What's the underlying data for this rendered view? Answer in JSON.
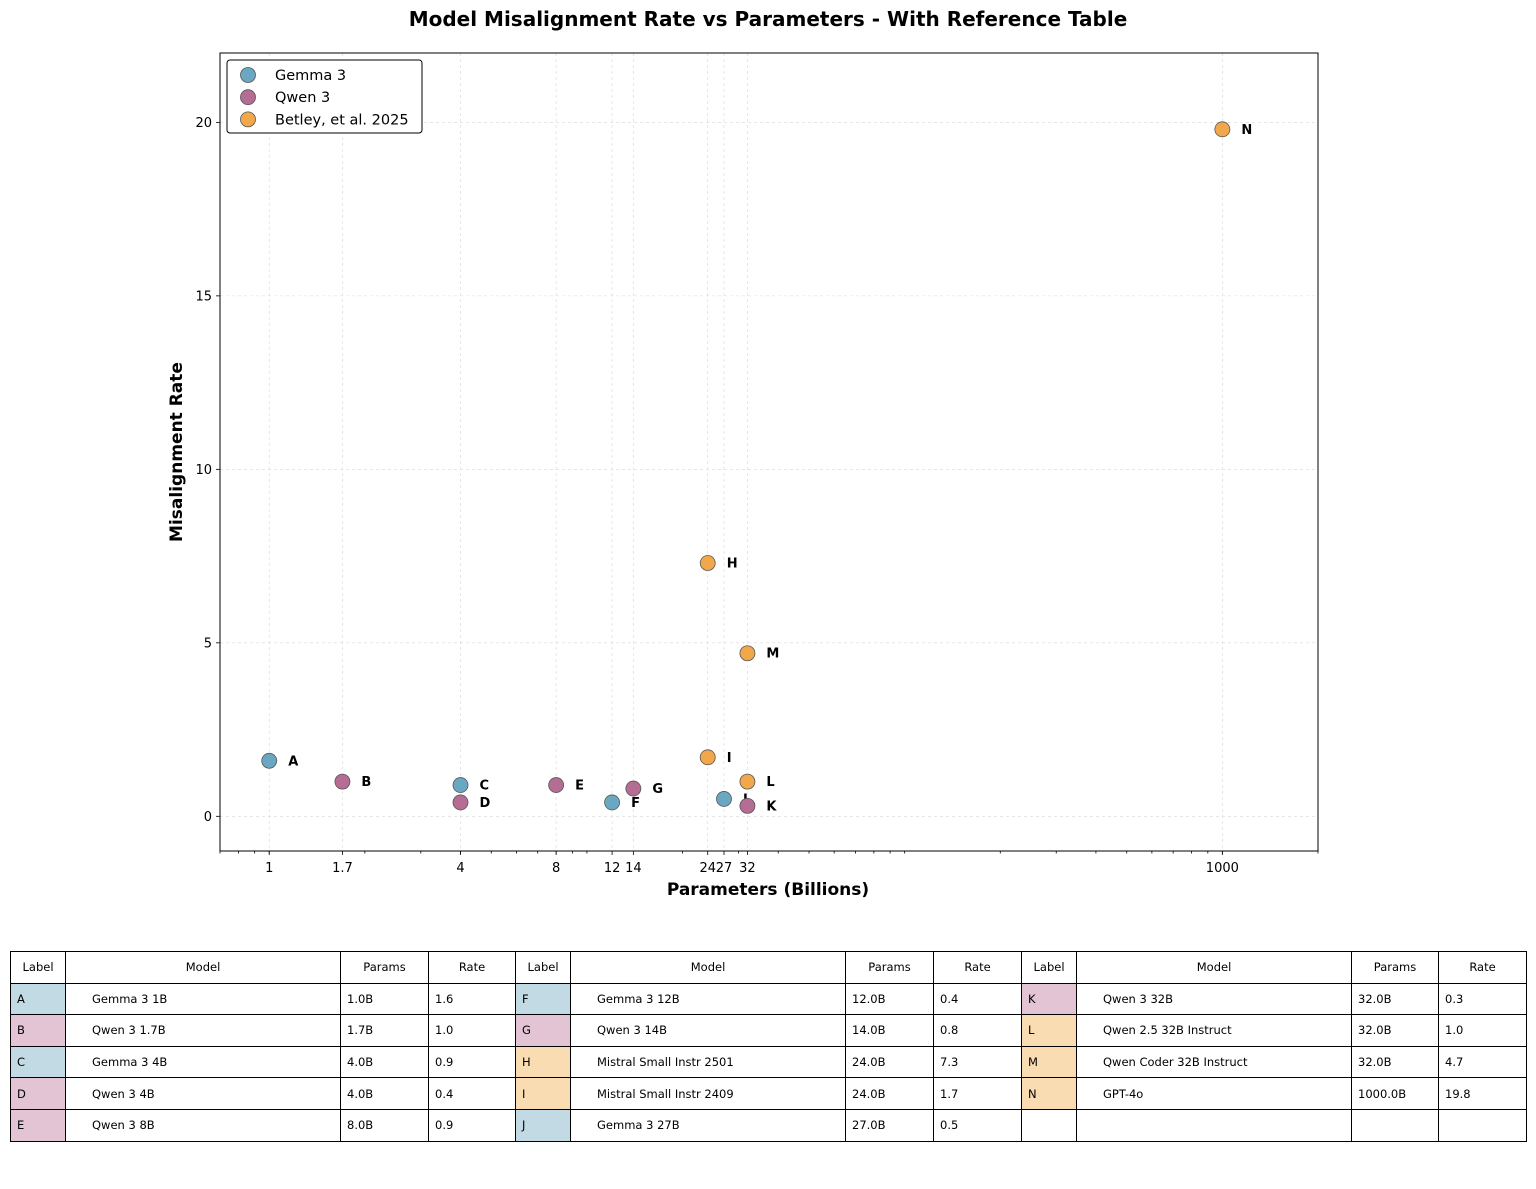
{
  "chart_data": {
    "type": "scatter",
    "title": "Model Misalignment Rate vs Parameters - With Reference Table",
    "xlabel": "Parameters (Billions)",
    "ylabel": "Misalignment Rate",
    "xscale": "log",
    "xlim": [
      0.7,
      2000
    ],
    "ylim": [
      -1,
      22
    ],
    "grid": true,
    "legend_location": "top-left",
    "xticks": [
      1,
      1.7,
      4,
      8,
      12,
      14,
      24,
      27,
      32,
      1000
    ],
    "xtick_labels": [
      "1",
      "1.7",
      "4",
      "8",
      "12",
      "14",
      "24",
      "27",
      "32",
      "1000"
    ],
    "yticks": [
      0,
      5,
      10,
      15,
      20
    ],
    "ytick_labels": [
      "0",
      "5",
      "10",
      "15",
      "20"
    ],
    "series": [
      {
        "name": "Gemma 3",
        "color": "#6aa7c2",
        "points": [
          {
            "label": "A",
            "x": 1,
            "y": 1.6
          },
          {
            "label": "C",
            "x": 4,
            "y": 0.9
          },
          {
            "label": "F",
            "x": 12,
            "y": 0.4
          },
          {
            "label": "J",
            "x": 27,
            "y": 0.5
          }
        ]
      },
      {
        "name": "Qwen 3",
        "color": "#b66d93",
        "points": [
          {
            "label": "B",
            "x": 1.7,
            "y": 1.0
          },
          {
            "label": "D",
            "x": 4,
            "y": 0.4
          },
          {
            "label": "E",
            "x": 8,
            "y": 0.9
          },
          {
            "label": "G",
            "x": 14,
            "y": 0.8
          },
          {
            "label": "K",
            "x": 32,
            "y": 0.3
          }
        ]
      },
      {
        "name": "Betley, et al. 2025",
        "color": "#f2a84a",
        "points": [
          {
            "label": "H",
            "x": 24,
            "y": 7.3
          },
          {
            "label": "I",
            "x": 24,
            "y": 1.7
          },
          {
            "label": "L",
            "x": 32,
            "y": 1.0
          },
          {
            "label": "M",
            "x": 32,
            "y": 4.7
          },
          {
            "label": "N",
            "x": 1000,
            "y": 19.8
          }
        ]
      }
    ]
  },
  "table": {
    "headers": [
      "Label",
      "Model",
      "Params",
      "Rate"
    ],
    "group_colors": {
      "Gemma 3": "#c2dae3",
      "Qwen 3": "#e2c4d4",
      "Betley, et al. 2025": "#fadcb3"
    },
    "columns": [
      [
        {
          "label": "A",
          "model": "Gemma 3 1B",
          "params": "1.0B",
          "rate": "1.6",
          "group": "Gemma 3"
        },
        {
          "label": "B",
          "model": "Qwen 3 1.7B",
          "params": "1.7B",
          "rate": "1.0",
          "group": "Qwen 3"
        },
        {
          "label": "C",
          "model": "Gemma 3 4B",
          "params": "4.0B",
          "rate": "0.9",
          "group": "Gemma 3"
        },
        {
          "label": "D",
          "model": "Qwen 3 4B",
          "params": "4.0B",
          "rate": "0.4",
          "group": "Qwen 3"
        },
        {
          "label": "E",
          "model": "Qwen 3 8B",
          "params": "8.0B",
          "rate": "0.9",
          "group": "Qwen 3"
        }
      ],
      [
        {
          "label": "F",
          "model": "Gemma 3 12B",
          "params": "12.0B",
          "rate": "0.4",
          "group": "Gemma 3"
        },
        {
          "label": "G",
          "model": "Qwen 3 14B",
          "params": "14.0B",
          "rate": "0.8",
          "group": "Qwen 3"
        },
        {
          "label": "H",
          "model": "Mistral Small Instr 2501",
          "params": "24.0B",
          "rate": "7.3",
          "group": "Betley, et al. 2025"
        },
        {
          "label": "I",
          "model": "Mistral Small Instr 2409",
          "params": "24.0B",
          "rate": "1.7",
          "group": "Betley, et al. 2025"
        },
        {
          "label": "J",
          "model": "Gemma 3 27B",
          "params": "27.0B",
          "rate": "0.5",
          "group": "Gemma 3"
        }
      ],
      [
        {
          "label": "K",
          "model": "Qwen 3 32B",
          "params": "32.0B",
          "rate": "0.3",
          "group": "Qwen 3"
        },
        {
          "label": "L",
          "model": "Qwen 2.5 32B Instruct",
          "params": "32.0B",
          "rate": "1.0",
          "group": "Betley, et al. 2025"
        },
        {
          "label": "M",
          "model": "Qwen Coder 32B Instruct",
          "params": "32.0B",
          "rate": "4.7",
          "group": "Betley, et al. 2025"
        },
        {
          "label": "N",
          "model": "GPT-4o",
          "params": "1000.0B",
          "rate": "19.8",
          "group": "Betley, et al. 2025"
        }
      ]
    ]
  }
}
